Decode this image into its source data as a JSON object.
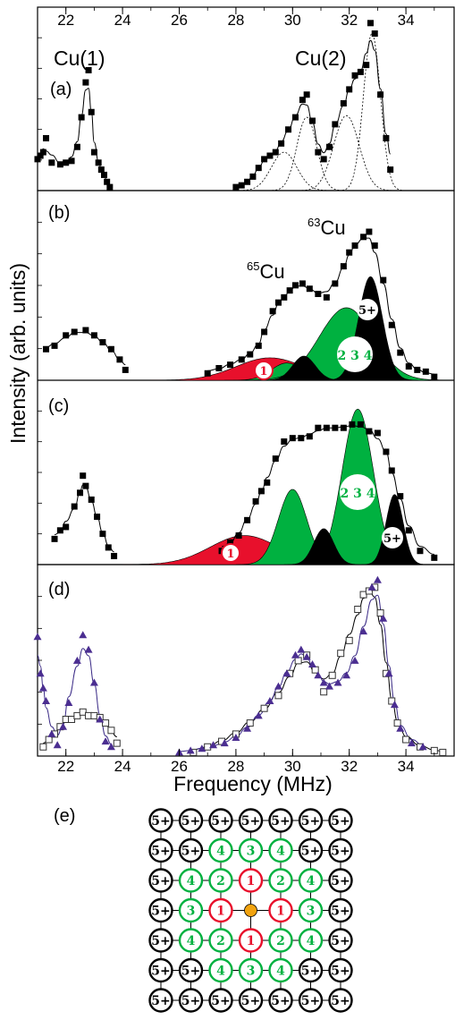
{
  "colors": {
    "peak1": "#e8102c",
    "peak234": "#00b140",
    "peak5": "#000000",
    "marker_open": "#333333",
    "triangle": "#4b2e91",
    "triangle_line": "#3a2a86",
    "center_site": "#f2a30f"
  },
  "top_axis": {
    "ticks": [
      "22",
      "24",
      "26",
      "28",
      "30",
      "32",
      "34"
    ]
  },
  "bottom_axis": {
    "ticks": [
      "22",
      "24",
      "26",
      "28",
      "30",
      "32",
      "34"
    ],
    "label": "Frequency (MHz)"
  },
  "y_label": "Intensity (arb. units)",
  "panel_a": {
    "tag": "(a)",
    "cu1_label": "Cu(1)",
    "cu2_label": "Cu(2)"
  },
  "panel_b": {
    "tag": "(b)",
    "iso63_sup": "63",
    "iso63_el": "Cu",
    "iso65_sup": "65",
    "iso65_el": "Cu",
    "peak_labels": {
      "p1": "1",
      "p234": "2 3 4",
      "p5": "5+"
    }
  },
  "panel_c": {
    "tag": "(c)",
    "peak_labels": {
      "p1": "1",
      "p234": "2 3 4",
      "p5": "5+"
    }
  },
  "panel_d": {
    "tag": "(d)"
  },
  "panel_e": {
    "tag": "(e)",
    "grid": [
      [
        "5+",
        "5+",
        "5+",
        "5+",
        "5+",
        "5+",
        "5+"
      ],
      [
        "5+",
        "5+",
        "4",
        "3",
        "4",
        "5+",
        "5+"
      ],
      [
        "5+",
        "4",
        "2",
        "1",
        "2",
        "4",
        "5+"
      ],
      [
        "5+",
        "3",
        "1",
        "",
        "1",
        "3",
        "5+"
      ],
      [
        "5+",
        "4",
        "2",
        "1",
        "2",
        "4",
        "5+"
      ],
      [
        "5+",
        "5+",
        "4",
        "3",
        "4",
        "5+",
        "5+"
      ],
      [
        "5+",
        "5+",
        "5+",
        "5+",
        "5+",
        "5+",
        "5+"
      ]
    ]
  },
  "chart_data": [
    {
      "panel": "a",
      "type": "scatter",
      "xlim": [
        21,
        35.7
      ],
      "ylim": [
        0,
        1
      ],
      "series": [
        {
          "marker": "filled-square",
          "points": [
            [
              21.0,
              0.18
            ],
            [
              21.1,
              0.2
            ],
            [
              21.2,
              0.22
            ],
            [
              21.3,
              0.3
            ],
            [
              21.5,
              0.16
            ],
            [
              21.8,
              0.15
            ],
            [
              22.0,
              0.16
            ],
            [
              22.2,
              0.17
            ],
            [
              22.4,
              0.25
            ],
            [
              22.55,
              0.42
            ],
            [
              22.7,
              0.62
            ],
            [
              22.8,
              0.69
            ],
            [
              22.9,
              0.45
            ],
            [
              23.0,
              0.22
            ],
            [
              23.15,
              0.16
            ],
            [
              23.25,
              0.12
            ],
            [
              23.35,
              0.09
            ],
            [
              23.45,
              0.05
            ],
            [
              23.55,
              0.02
            ],
            [
              28.0,
              0.02
            ],
            [
              28.2,
              0.03
            ],
            [
              28.4,
              0.05
            ],
            [
              28.6,
              0.08
            ],
            [
              28.8,
              0.13
            ],
            [
              29.0,
              0.18
            ],
            [
              29.2,
              0.2
            ],
            [
              29.4,
              0.22
            ],
            [
              29.6,
              0.27
            ],
            [
              29.85,
              0.35
            ],
            [
              30.1,
              0.42
            ],
            [
              30.35,
              0.52
            ],
            [
              30.5,
              0.55
            ],
            [
              30.7,
              0.4
            ],
            [
              30.9,
              0.22
            ],
            [
              31.1,
              0.18
            ],
            [
              31.3,
              0.25
            ],
            [
              31.5,
              0.38
            ],
            [
              31.8,
              0.5
            ],
            [
              32.0,
              0.58
            ],
            [
              32.2,
              0.66
            ],
            [
              32.4,
              0.68
            ],
            [
              32.6,
              0.72
            ],
            [
              32.75,
              0.96
            ],
            [
              32.9,
              0.9
            ],
            [
              33.1,
              0.55
            ],
            [
              33.3,
              0.3
            ],
            [
              33.45,
              0.12
            ]
          ]
        }
      ],
      "fit_curves": [
        "cu1-fit",
        "cu2-fit",
        "cu2-subpeaks-dotted"
      ]
    },
    {
      "panel": "b",
      "type": "area",
      "xlim": [
        21,
        35.7
      ],
      "ylim": [
        0,
        1
      ],
      "series": [
        {
          "marker": "filled-square",
          "points": [
            [
              21.3,
              0.18
            ],
            [
              21.6,
              0.2
            ],
            [
              22.0,
              0.26
            ],
            [
              22.3,
              0.28
            ],
            [
              22.7,
              0.29
            ],
            [
              23.0,
              0.26
            ],
            [
              23.3,
              0.22
            ],
            [
              23.6,
              0.18
            ],
            [
              23.9,
              0.12
            ],
            [
              24.1,
              0.06
            ],
            [
              27.0,
              0.04
            ],
            [
              27.4,
              0.07
            ],
            [
              27.8,
              0.09
            ],
            [
              28.2,
              0.12
            ],
            [
              28.5,
              0.15
            ],
            [
              28.8,
              0.2
            ],
            [
              29.0,
              0.28
            ],
            [
              29.3,
              0.4
            ],
            [
              29.5,
              0.45
            ],
            [
              29.7,
              0.48
            ],
            [
              29.9,
              0.52
            ],
            [
              30.1,
              0.55
            ],
            [
              30.35,
              0.56
            ],
            [
              30.6,
              0.53
            ],
            [
              30.9,
              0.5
            ],
            [
              31.2,
              0.48
            ],
            [
              31.5,
              0.56
            ],
            [
              31.8,
              0.66
            ],
            [
              32.0,
              0.74
            ],
            [
              32.2,
              0.78
            ],
            [
              32.5,
              0.83
            ],
            [
              32.7,
              0.86
            ],
            [
              32.9,
              0.78
            ],
            [
              33.2,
              0.58
            ],
            [
              33.5,
              0.32
            ],
            [
              33.8,
              0.16
            ],
            [
              34.1,
              0.08
            ],
            [
              34.4,
              0.06
            ],
            [
              34.7,
              0.05
            ],
            [
              35.0,
              0.02
            ]
          ]
        }
      ],
      "gaussians": [
        {
          "label": "1",
          "color": "peak1",
          "center": 29.2,
          "height": 0.13,
          "width": 1.2
        },
        {
          "label": "green-1",
          "color": "peak234",
          "center": 29.8,
          "height": 0.1,
          "width": 0.55
        },
        {
          "label": "2 3 4",
          "color": "peak234",
          "center": 31.9,
          "height": 0.42,
          "width": 0.95
        },
        {
          "label": "black-1",
          "color": "peak5",
          "center": 30.4,
          "height": 0.14,
          "width": 0.4
        },
        {
          "label": "5+",
          "color": "peak5",
          "center": 32.75,
          "height": 0.6,
          "width": 0.42
        }
      ]
    },
    {
      "panel": "c",
      "type": "area",
      "xlim": [
        21,
        35.7
      ],
      "ylim": [
        0,
        1
      ],
      "series": [
        {
          "marker": "filled-square",
          "points": [
            [
              21.6,
              0.15
            ],
            [
              21.8,
              0.2
            ],
            [
              22.0,
              0.22
            ],
            [
              22.3,
              0.34
            ],
            [
              22.5,
              0.42
            ],
            [
              22.6,
              0.52
            ],
            [
              22.7,
              0.46
            ],
            [
              22.9,
              0.38
            ],
            [
              23.1,
              0.28
            ],
            [
              23.3,
              0.18
            ],
            [
              23.5,
              0.1
            ],
            [
              23.7,
              0.05
            ],
            [
              27.5,
              0.08
            ],
            [
              27.8,
              0.13
            ],
            [
              28.1,
              0.17
            ],
            [
              28.4,
              0.26
            ],
            [
              28.7,
              0.37
            ],
            [
              28.9,
              0.43
            ],
            [
              29.1,
              0.48
            ],
            [
              29.4,
              0.62
            ],
            [
              29.7,
              0.72
            ],
            [
              30.0,
              0.74
            ],
            [
              30.3,
              0.74
            ],
            [
              30.6,
              0.75
            ],
            [
              30.9,
              0.8
            ],
            [
              31.2,
              0.8
            ],
            [
              31.5,
              0.8
            ],
            [
              31.8,
              0.8
            ],
            [
              32.1,
              0.82
            ],
            [
              32.4,
              0.82
            ],
            [
              32.7,
              0.78
            ],
            [
              33.0,
              0.77
            ],
            [
              33.3,
              0.66
            ],
            [
              33.5,
              0.55
            ],
            [
              33.8,
              0.4
            ],
            [
              34.1,
              0.2
            ],
            [
              34.5,
              0.08
            ],
            [
              35.0,
              0.04
            ]
          ]
        }
      ],
      "gaussians": [
        {
          "label": "1",
          "color": "peak1",
          "center": 28.3,
          "height": 0.17,
          "width": 1.2
        },
        {
          "label": "green-1",
          "color": "peak234",
          "center": 30.0,
          "height": 0.44,
          "width": 0.5
        },
        {
          "label": "2 3 4",
          "color": "peak234",
          "center": 32.3,
          "height": 0.91,
          "width": 0.55
        },
        {
          "label": "black-1",
          "color": "peak5",
          "center": 31.1,
          "height": 0.21,
          "width": 0.35
        },
        {
          "label": "5+",
          "color": "peak5",
          "center": 33.6,
          "height": 0.41,
          "width": 0.3
        }
      ]
    },
    {
      "panel": "d",
      "type": "scatter",
      "xlim": [
        21,
        35.7
      ],
      "ylim": [
        0,
        1
      ],
      "series": [
        {
          "marker": "open-square",
          "points": [
            [
              21.2,
              0.05
            ],
            [
              21.4,
              0.09
            ],
            [
              21.6,
              0.12
            ],
            [
              21.8,
              0.16
            ],
            [
              22.0,
              0.2
            ],
            [
              22.2,
              0.2
            ],
            [
              22.4,
              0.22
            ],
            [
              22.6,
              0.24
            ],
            [
              22.8,
              0.22
            ],
            [
              23.0,
              0.22
            ],
            [
              23.2,
              0.21
            ],
            [
              23.4,
              0.18
            ],
            [
              23.6,
              0.14
            ],
            [
              23.8,
              0.07
            ],
            [
              26.5,
              0.02
            ],
            [
              27.0,
              0.05
            ],
            [
              27.5,
              0.08
            ],
            [
              28.0,
              0.12
            ],
            [
              28.5,
              0.18
            ],
            [
              29.0,
              0.26
            ],
            [
              29.5,
              0.33
            ],
            [
              29.9,
              0.45
            ],
            [
              30.2,
              0.52
            ],
            [
              30.5,
              0.55
            ],
            [
              30.8,
              0.47
            ],
            [
              31.1,
              0.35
            ],
            [
              31.4,
              0.44
            ],
            [
              31.7,
              0.56
            ],
            [
              32.0,
              0.63
            ],
            [
              32.3,
              0.8
            ],
            [
              32.5,
              0.88
            ],
            [
              32.7,
              0.9
            ],
            [
              32.9,
              0.92
            ],
            [
              33.1,
              0.78
            ],
            [
              33.3,
              0.45
            ],
            [
              33.5,
              0.3
            ],
            [
              33.7,
              0.18
            ],
            [
              34.0,
              0.09
            ],
            [
              34.5,
              0.05
            ],
            [
              35.0,
              0.03
            ],
            [
              35.3,
              0.02
            ]
          ]
        },
        {
          "marker": "filled-triangle",
          "points": [
            [
              21.0,
              0.65
            ],
            [
              21.1,
              0.45
            ],
            [
              21.2,
              0.37
            ],
            [
              21.3,
              0.3
            ],
            [
              21.5,
              0.12
            ],
            [
              21.7,
              0.06
            ],
            [
              21.9,
              0.16
            ],
            [
              22.1,
              0.29
            ],
            [
              22.4,
              0.52
            ],
            [
              22.6,
              0.66
            ],
            [
              22.8,
              0.58
            ],
            [
              23.0,
              0.4
            ],
            [
              23.2,
              0.2
            ],
            [
              23.4,
              0.08
            ],
            [
              23.6,
              0.05
            ],
            [
              26.0,
              0.02
            ],
            [
              26.4,
              0.03
            ],
            [
              26.8,
              0.04
            ],
            [
              27.2,
              0.06
            ],
            [
              27.6,
              0.07
            ],
            [
              28.0,
              0.1
            ],
            [
              28.4,
              0.15
            ],
            [
              28.8,
              0.22
            ],
            [
              29.2,
              0.3
            ],
            [
              29.5,
              0.38
            ],
            [
              29.8,
              0.45
            ],
            [
              30.1,
              0.55
            ],
            [
              30.3,
              0.58
            ],
            [
              30.5,
              0.54
            ],
            [
              30.7,
              0.5
            ],
            [
              30.9,
              0.44
            ],
            [
              31.1,
              0.4
            ],
            [
              31.3,
              0.38
            ],
            [
              31.6,
              0.4
            ],
            [
              31.9,
              0.44
            ],
            [
              32.2,
              0.52
            ],
            [
              32.5,
              0.68
            ],
            [
              32.8,
              0.92
            ],
            [
              33.0,
              0.96
            ],
            [
              33.2,
              0.75
            ],
            [
              33.4,
              0.45
            ],
            [
              33.6,
              0.28
            ],
            [
              33.8,
              0.15
            ],
            [
              34.2,
              0.07
            ],
            [
              34.6,
              0.05
            ]
          ]
        }
      ]
    }
  ]
}
